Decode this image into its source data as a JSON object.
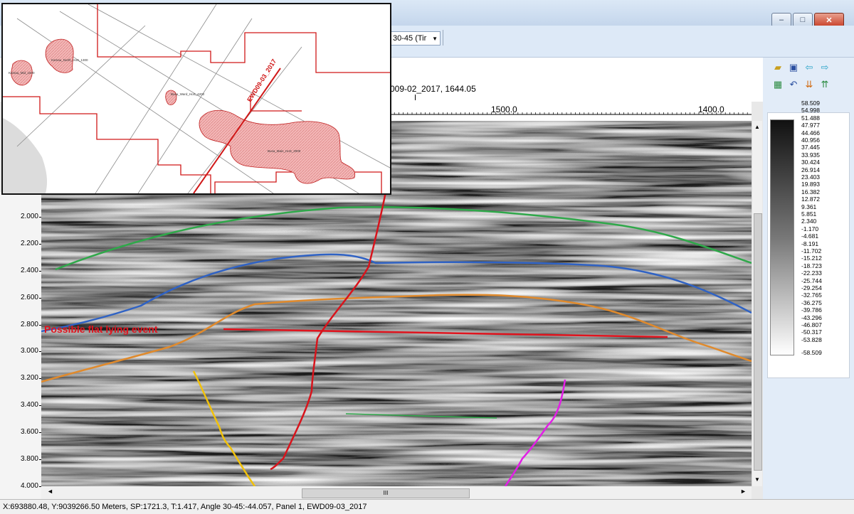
{
  "toolbar": {
    "combo_value": "30-45 (Tir"
  },
  "window_buttons": {
    "minimize": "–",
    "maximize": "□",
    "close": "✕"
  },
  "header": {
    "line_info": "009-02_2017, 1644.05"
  },
  "ruler": {
    "labels": [
      "1500.0",
      "1400.0"
    ]
  },
  "time_axis": {
    "labels": [
      "2.000",
      "2.200",
      "2.400",
      "2.600",
      "2.800",
      "3.000",
      "3.200",
      "3.400",
      "3.600",
      "3.800",
      "4.000"
    ]
  },
  "annotation": {
    "text": "Possible flat lying event",
    "color": "#e0141e"
  },
  "colorbar": {
    "labels": [
      "58.509",
      "54.998",
      "51.488",
      "47.977",
      "44.466",
      "40.956",
      "37.445",
      "33.935",
      "30.424",
      "26.914",
      "23.403",
      "19.893",
      "16.382",
      "12.872",
      "9.361",
      "5.851",
      "2.340",
      "-1.170",
      "-4.681",
      "-8.191",
      "-11.702",
      "-15.212",
      "-18.723",
      "-22.233",
      "-25.744",
      "-29.254",
      "-32.765",
      "-36.275",
      "-39.786",
      "-43.296",
      "-46.807",
      "-50.317",
      "-53.828",
      "-58.509"
    ]
  },
  "icons": [
    "open-folder-icon",
    "save-icon",
    "arrow-left-icon",
    "arrow-right-icon",
    "grid-icon",
    "undo-icon",
    "sort-down-icon",
    "sort-up-icon"
  ],
  "hscroll": {
    "thumb_label": "III"
  },
  "status": {
    "text": "X:693880.48, Y:9039266.50 Meters,  SP:1721.3,  T:1.417,  Angle 30-45:-44.057,  Panel 1,  EWD09-03_2017"
  },
  "map": {
    "line_label": "EWD09-03_2017",
    "polygon_labels": [
      "Kamau_North_HoS_1300",
      "Kamau_Mid_1600",
      "Busa_Ward_HoS_4200",
      "Busa_Main_HoS_2000"
    ]
  },
  "horizon_colors": {
    "green": "#2fa84a",
    "blue": "#2f62c4",
    "orange": "#e08a2c",
    "red": "#d8141c",
    "yellow": "#f2c20a",
    "magenta": "#e21ee6"
  }
}
